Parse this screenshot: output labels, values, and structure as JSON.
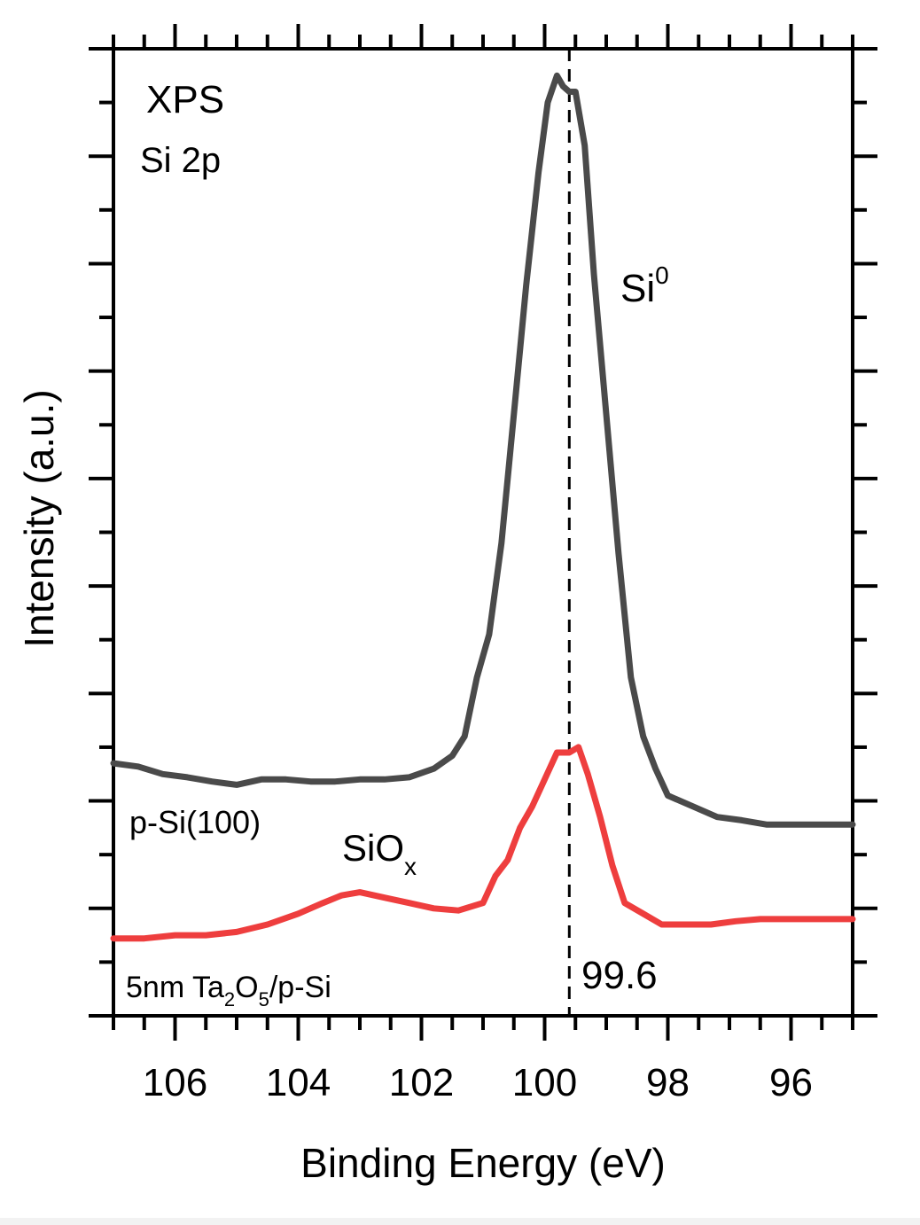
{
  "chart_data": {
    "type": "line",
    "title": "",
    "xlabel": "Binding Energy (eV)",
    "ylabel": "Intensity (a.u.)",
    "xlim": [
      107,
      95
    ],
    "x_reversed": true,
    "ylim": [
      0,
      9
    ],
    "y_tick_labels_shown": false,
    "x_ticks": [
      106,
      104,
      102,
      100,
      98,
      96
    ],
    "grid": false,
    "legend": "none",
    "series": [
      {
        "name": "p-Si(100)",
        "color": "#4a4a4a",
        "x": [
          107.0,
          106.6,
          106.2,
          105.8,
          105.4,
          105.0,
          104.6,
          104.2,
          103.8,
          103.4,
          103.0,
          102.6,
          102.2,
          101.8,
          101.5,
          101.3,
          101.1,
          100.9,
          100.7,
          100.5,
          100.3,
          100.1,
          99.95,
          99.8,
          99.7,
          99.6,
          99.5,
          99.35,
          99.2,
          99.0,
          98.8,
          98.6,
          98.4,
          98.2,
          98.0,
          97.6,
          97.2,
          96.8,
          96.4,
          96.0,
          95.6,
          95.0
        ],
        "y": [
          2.35,
          2.32,
          2.25,
          2.22,
          2.18,
          2.15,
          2.2,
          2.2,
          2.18,
          2.18,
          2.2,
          2.2,
          2.22,
          2.3,
          2.42,
          2.6,
          3.15,
          3.55,
          4.4,
          5.6,
          6.8,
          7.85,
          8.5,
          8.75,
          8.65,
          8.6,
          8.6,
          8.1,
          6.9,
          5.6,
          4.3,
          3.15,
          2.6,
          2.3,
          2.05,
          1.95,
          1.85,
          1.82,
          1.78,
          1.78,
          1.78,
          1.78
        ]
      },
      {
        "name": "5nm Ta2O5/p-Si",
        "color": "#ee3e3e",
        "x": [
          107.0,
          106.5,
          106.0,
          105.5,
          105.0,
          104.5,
          104.0,
          103.6,
          103.3,
          103.0,
          102.6,
          102.2,
          101.8,
          101.4,
          101.0,
          100.8,
          100.6,
          100.4,
          100.2,
          100.0,
          99.8,
          99.6,
          99.45,
          99.3,
          99.1,
          98.9,
          98.7,
          98.4,
          98.1,
          97.7,
          97.3,
          96.9,
          96.5,
          96.0,
          95.5,
          95.0
        ],
        "y": [
          0.72,
          0.72,
          0.75,
          0.75,
          0.78,
          0.85,
          0.95,
          1.05,
          1.12,
          1.15,
          1.1,
          1.05,
          1.0,
          0.98,
          1.05,
          1.3,
          1.45,
          1.75,
          1.95,
          2.2,
          2.45,
          2.45,
          2.5,
          2.25,
          1.85,
          1.4,
          1.05,
          0.95,
          0.85,
          0.85,
          0.85,
          0.88,
          0.9,
          0.9,
          0.9,
          0.9
        ]
      }
    ],
    "reference_line": {
      "x": 99.6,
      "style": "dashed",
      "label": "99.6"
    },
    "annotations": [
      {
        "id": "xps",
        "text": "XPS"
      },
      {
        "id": "si2p",
        "text": "Si 2p"
      },
      {
        "id": "si0",
        "text": "Si",
        "sup": "0"
      },
      {
        "id": "psi",
        "text": "p-Si(100)"
      },
      {
        "id": "siox",
        "text": "SiO",
        "sub": "x"
      },
      {
        "id": "ta2o5",
        "parts": [
          "5nm Ta",
          "2",
          "O",
          "5",
          "/p-Si"
        ]
      }
    ]
  }
}
